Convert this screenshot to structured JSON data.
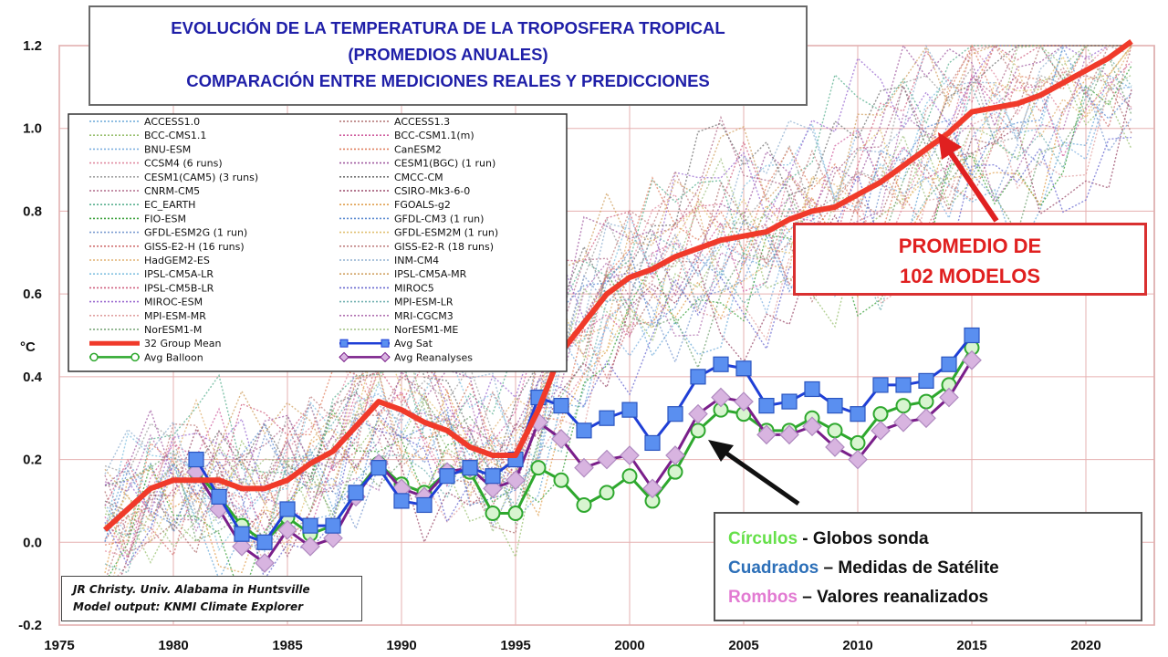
{
  "title": {
    "line1": "EVOLUCIÓN DE LA TEMPERATURA DE LA TROPOSFERA TROPICAL",
    "line2": "(PROMEDIOS ANUALES)",
    "line3": "COMPARACIÓN ENTRE MEDICIONES REALES Y PREDICCIONES"
  },
  "annotation_mean": {
    "line1": "PROMEDIO DE",
    "line2": "102 MODELOS"
  },
  "credit": {
    "line1": "JR Christy. Univ. Alabama in Huntsville",
    "line2": "Model output: KNMI Climate Explorer"
  },
  "key": {
    "circles_word": "Círculos",
    "circles_text": " - Globos sonda",
    "squares_word": "Cuadrados",
    "squares_text": " – Medidas de Satélite",
    "diamonds_word": "Rombos",
    "diamonds_text": " – Valores reanalizados"
  },
  "colors": {
    "mean": "#f03a2a",
    "sat": "#1f3fd6",
    "sat_fill": "#5a8ff0",
    "balloon": "#2ea82e",
    "balloon_fill": "#d8f5d0",
    "reanalysis": "#7a1f8a",
    "reanalysis_fill": "#d8b4e0",
    "title": "#1f1fa8",
    "annotation": "#e02020"
  },
  "chart_data": {
    "type": "line",
    "xlim": [
      1975,
      2023
    ],
    "ylim": [
      -0.2,
      1.2
    ],
    "ylabel": "°C",
    "xticks": [
      1975,
      1980,
      1985,
      1990,
      1995,
      2000,
      2005,
      2010,
      2015,
      2020
    ],
    "yticks": [
      -0.2,
      0.0,
      0.2,
      0.4,
      0.6,
      0.8,
      1.0,
      1.2
    ],
    "legend_placement": "top-left",
    "legend": {
      "models_left": [
        "ACCESS1.0",
        "BCC-CMS1.1",
        "BNU-ESM",
        "CCSM4 (6 runs)",
        "CESM1(CAM5) (3 runs)",
        "CNRM-CM5",
        "EC_EARTH",
        "FIO-ESM",
        "GFDL-ESM2G (1 run)",
        "GISS-E2-H (16 runs)",
        "HadGEM2-ES",
        "IPSL-CM5A-LR",
        "IPSL-CM5B-LR",
        "MIROC-ESM",
        "MPI-ESM-MR",
        "NorESM1-M"
      ],
      "models_right": [
        "ACCESS1.3",
        "BCC-CSM1.1(m)",
        "CanESM2",
        "CESM1(BGC) (1 run)",
        "CMCC-CM",
        "CSIRO-Mk3-6-0",
        "FGOALS-g2",
        "GFDL-CM3 (1 run)",
        "GFDL-ESM2M (1 run)",
        "GISS-E2-R (18 runs)",
        "INM-CM4",
        "IPSL-CM5A-MR",
        "MIROC5",
        "MPI-ESM-LR",
        "MRI-CGCM3",
        "NorESM1-ME"
      ],
      "model_colors_left": [
        "#6aa8d8",
        "#9ac070",
        "#7fb0e0",
        "#e08aa0",
        "#a0a0a0",
        "#b06a8a",
        "#5ab090",
        "#3aa03a",
        "#7a9ad0",
        "#d07070",
        "#e0b070",
        "#80c0e0",
        "#d06080",
        "#9a6ad0",
        "#e0a0a0",
        "#70a070"
      ],
      "model_colors_right": [
        "#b07070",
        "#d060a0",
        "#e08060",
        "#a05aa0",
        "#707070",
        "#9a4a6a",
        "#e0a050",
        "#5a8ad0",
        "#e0c070",
        "#c08080",
        "#90b0d0",
        "#d0a060",
        "#6a6ad0",
        "#70b0b0",
        "#b070b0",
        "#a0c080"
      ],
      "mean": "32 Group Mean",
      "sat": "Avg Sat",
      "balloon": "Avg Balloon",
      "reanalysis": "Avg Reanalyses"
    },
    "series": [
      {
        "name": "32 Group Mean",
        "x": [
          1977,
          1978,
          1979,
          1980,
          1981,
          1982,
          1983,
          1984,
          1985,
          1986,
          1987,
          1988,
          1989,
          1990,
          1991,
          1992,
          1993,
          1994,
          1995,
          1996,
          1997,
          1998,
          1999,
          2000,
          2001,
          2002,
          2003,
          2004,
          2005,
          2006,
          2007,
          2008,
          2009,
          2010,
          2011,
          2012,
          2013,
          2014,
          2015,
          2016,
          2017,
          2018,
          2019,
          2020,
          2021,
          2022
        ],
        "values": [
          0.03,
          0.08,
          0.13,
          0.15,
          0.15,
          0.15,
          0.13,
          0.13,
          0.15,
          0.19,
          0.22,
          0.28,
          0.34,
          0.32,
          0.29,
          0.27,
          0.23,
          0.21,
          0.21,
          0.32,
          0.46,
          0.53,
          0.6,
          0.64,
          0.66,
          0.69,
          0.71,
          0.73,
          0.74,
          0.75,
          0.78,
          0.8,
          0.81,
          0.84,
          0.87,
          0.91,
          0.95,
          0.99,
          1.04,
          1.05,
          1.06,
          1.08,
          1.11,
          1.14,
          1.17,
          1.21
        ]
      },
      {
        "name": "Avg Sat",
        "x": [
          1981,
          1982,
          1983,
          1984,
          1985,
          1986,
          1987,
          1988,
          1989,
          1990,
          1991,
          1992,
          1993,
          1994,
          1995,
          1996,
          1997,
          1998,
          1999,
          2000,
          2001,
          2002,
          2003,
          2004,
          2005,
          2006,
          2007,
          2008,
          2009,
          2010,
          2011,
          2012,
          2013,
          2014,
          2015
        ],
        "values": [
          0.2,
          0.11,
          0.02,
          0.0,
          0.08,
          0.04,
          0.04,
          0.12,
          0.18,
          0.1,
          0.09,
          0.16,
          0.18,
          0.16,
          0.2,
          0.35,
          0.33,
          0.27,
          0.3,
          0.32,
          0.24,
          0.31,
          0.4,
          0.43,
          0.42,
          0.33,
          0.34,
          0.37,
          0.33,
          0.31,
          0.38,
          0.38,
          0.39,
          0.43,
          0.5
        ]
      },
      {
        "name": "Avg Balloon",
        "x": [
          1981,
          1982,
          1983,
          1984,
          1985,
          1986,
          1987,
          1988,
          1989,
          1990,
          1991,
          1992,
          1993,
          1994,
          1995,
          1996,
          1997,
          1998,
          1999,
          2000,
          2001,
          2002,
          2003,
          2004,
          2005,
          2006,
          2007,
          2008,
          2009,
          2010,
          2011,
          2012,
          2013,
          2014,
          2015
        ],
        "values": [
          0.17,
          0.11,
          0.04,
          0.0,
          0.06,
          0.02,
          0.04,
          0.12,
          0.19,
          0.14,
          0.12,
          0.17,
          0.17,
          0.07,
          0.07,
          0.18,
          0.15,
          0.09,
          0.12,
          0.16,
          0.1,
          0.17,
          0.27,
          0.32,
          0.31,
          0.27,
          0.27,
          0.3,
          0.27,
          0.24,
          0.31,
          0.33,
          0.34,
          0.38,
          0.47
        ]
      },
      {
        "name": "Avg Reanalyses",
        "x": [
          1981,
          1982,
          1983,
          1984,
          1985,
          1986,
          1987,
          1988,
          1989,
          1990,
          1991,
          1992,
          1993,
          1994,
          1995,
          1996,
          1997,
          1998,
          1999,
          2000,
          2001,
          2002,
          2003,
          2004,
          2005,
          2006,
          2007,
          2008,
          2009,
          2010,
          2011,
          2012,
          2013,
          2014,
          2015
        ],
        "values": [
          0.17,
          0.08,
          -0.01,
          -0.05,
          0.03,
          -0.01,
          0.01,
          0.11,
          0.19,
          0.13,
          0.11,
          0.17,
          0.18,
          0.13,
          0.15,
          0.29,
          0.25,
          0.18,
          0.2,
          0.21,
          0.13,
          0.21,
          0.31,
          0.35,
          0.34,
          0.26,
          0.26,
          0.28,
          0.23,
          0.2,
          0.27,
          0.29,
          0.3,
          0.35,
          0.44
        ]
      }
    ]
  }
}
